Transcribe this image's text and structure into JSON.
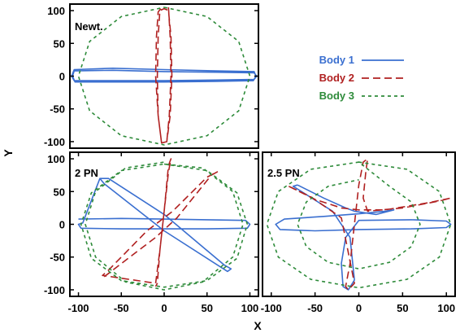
{
  "figure": {
    "xlabel": "X",
    "ylabel": "Y"
  },
  "legend": {
    "items": [
      {
        "label": "Body 1",
        "color": "#3a6fd0",
        "dash": "solid"
      },
      {
        "label": "Body 2",
        "color": "#b02020",
        "dash": "long-dash"
      },
      {
        "label": "Body 3",
        "color": "#2e8b3a",
        "dash": "short-dash"
      }
    ]
  },
  "chart_data": [
    {
      "type": "line",
      "panel_label": "Newt.",
      "xlim": [
        -110,
        110
      ],
      "ylim": [
        -110,
        110
      ],
      "xticks": [],
      "yticks": [
        -100,
        -50,
        0,
        50,
        100
      ],
      "grid": false,
      "series": [
        {
          "name": "Body 1",
          "color": "#3a6fd0",
          "dash": "solid",
          "x": [
            -105,
            -60,
            0,
            60,
            105,
            108,
            105,
            60,
            0,
            -60,
            -105,
            -108,
            -105,
            -60,
            0,
            60,
            105,
            107,
            104,
            60,
            0,
            -60,
            -104,
            -107,
            -105
          ],
          "y": [
            8,
            9,
            7,
            6,
            5,
            0,
            -5,
            -6,
            -7,
            -7,
            -7,
            0,
            10,
            12,
            10,
            8,
            7,
            0,
            -7,
            -8,
            -9,
            -9,
            -9,
            0,
            8
          ]
        },
        {
          "name": "Body 2",
          "color": "#b02020",
          "dash": "long-dash",
          "x": [
            5,
            7,
            8,
            6,
            3,
            -3,
            -7,
            -8,
            -7,
            -5,
            0,
            5,
            8,
            9,
            7,
            3,
            -3,
            -7,
            -10,
            -9,
            -7,
            -4
          ],
          "y": [
            105,
            60,
            0,
            -60,
            -100,
            -102,
            -60,
            0,
            60,
            100,
            103,
            100,
            60,
            0,
            -60,
            -100,
            -102,
            -60,
            0,
            60,
            98,
            103
          ]
        },
        {
          "name": "Body 3",
          "color": "#2e8b3a",
          "dash": "short-dash",
          "x": [
            0,
            50,
            87,
            100,
            87,
            50,
            0,
            -50,
            -87,
            -100,
            -87,
            -50,
            0
          ],
          "y": [
            105,
            91,
            53,
            0,
            -53,
            -91,
            -105,
            -91,
            -53,
            0,
            53,
            91,
            105
          ]
        }
      ]
    },
    {
      "type": "line",
      "panel_label": "2 PN",
      "xlim": [
        -110,
        110
      ],
      "ylim": [
        -110,
        110
      ],
      "xticks": [
        -100,
        -50,
        0,
        50,
        100
      ],
      "yticks": [
        -100,
        -50,
        0,
        50,
        100
      ],
      "grid": false,
      "series": [
        {
          "name": "Body 1",
          "color": "#3a6fd0",
          "dash": "solid",
          "x": [
            -100,
            -50,
            0,
            50,
            95,
            100,
            97,
            50,
            0,
            -50,
            -97,
            -100,
            -95,
            -75,
            -65,
            0,
            70,
            78,
            74,
            0,
            -70,
            -75
          ],
          "y": [
            8,
            9,
            8,
            7,
            6,
            0,
            -6,
            -7,
            -7,
            -7,
            -6,
            0,
            2,
            70,
            70,
            15,
            -62,
            -68,
            -72,
            -10,
            62,
            70
          ]
        },
        {
          "name": "Body 2",
          "color": "#b02020",
          "dash": "long-dash",
          "x": [
            -70,
            -40,
            -10,
            15,
            55,
            62,
            50,
            10,
            -20,
            -65,
            -72,
            -10,
            -5,
            0,
            5,
            8,
            5,
            0,
            -5,
            -8,
            -10
          ],
          "y": [
            -80,
            -50,
            -20,
            10,
            75,
            80,
            72,
            20,
            -10,
            -70,
            -78,
            -90,
            -40,
            20,
            80,
            100,
            90,
            20,
            -40,
            -90,
            -95
          ]
        },
        {
          "name": "Body 3",
          "color": "#2e8b3a",
          "dash": "short-dash",
          "x": [
            0,
            50,
            85,
            97,
            85,
            50,
            0,
            -50,
            -85,
            -97,
            -85,
            -50,
            0,
            45,
            80,
            92,
            80,
            45,
            0,
            -45,
            -80,
            -92,
            -80,
            -45,
            0
          ],
          "y": [
            92,
            82,
            48,
            0,
            -52,
            -86,
            -96,
            -86,
            -52,
            0,
            48,
            82,
            92,
            86,
            50,
            0,
            -50,
            -88,
            -100,
            -88,
            -50,
            0,
            50,
            86,
            95
          ]
        }
      ]
    },
    {
      "type": "line",
      "panel_label": "2.5 PN",
      "xlim": [
        -110,
        110
      ],
      "ylim": [
        -110,
        110
      ],
      "xticks": [
        -100,
        -50,
        0,
        50,
        100
      ],
      "yticks": [],
      "grid": false,
      "series": [
        {
          "name": "Body 1",
          "color": "#3a6fd0",
          "dash": "solid",
          "x": [
            -70,
            -40,
            -15,
            -5,
            20,
            40,
            30,
            0,
            -40,
            -85,
            -95,
            -90,
            -50,
            0,
            60,
            100,
            105,
            100,
            60,
            0,
            -15,
            -20,
            -18,
            -12,
            -5,
            -10,
            -30,
            -75,
            -70
          ],
          "y": [
            60,
            40,
            25,
            20,
            15,
            22,
            20,
            16,
            12,
            8,
            0,
            -8,
            -10,
            -8,
            -7,
            -5,
            0,
            5,
            7,
            6,
            -20,
            -60,
            -95,
            -100,
            -85,
            -20,
            20,
            58,
            60
          ]
        },
        {
          "name": "Body 2",
          "color": "#b02020",
          "dash": "long-dash",
          "x": [
            -80,
            -50,
            -20,
            0,
            30,
            80,
            105,
            90,
            50,
            10,
            5,
            8,
            10,
            5,
            0,
            -5,
            -10,
            -15,
            -12,
            -5,
            -20,
            -55,
            -80
          ],
          "y": [
            58,
            38,
            25,
            22,
            22,
            33,
            40,
            35,
            25,
            20,
            40,
            80,
            100,
            95,
            60,
            0,
            -60,
            -95,
            -100,
            -90,
            10,
            42,
            58
          ]
        },
        {
          "name": "Body 3",
          "color": "#2e8b3a",
          "dash": "short-dash",
          "x": [
            0,
            55,
            92,
            105,
            92,
            55,
            0,
            -55,
            -92,
            -105,
            -92,
            -55,
            0,
            35,
            60,
            70,
            60,
            35,
            0,
            -35,
            -60,
            -70,
            -60,
            -35,
            0
          ],
          "y": [
            95,
            84,
            50,
            0,
            -50,
            -84,
            -97,
            -84,
            -50,
            0,
            50,
            84,
            95,
            58,
            34,
            0,
            -34,
            -58,
            -68,
            -58,
            -34,
            0,
            34,
            58,
            68
          ]
        }
      ]
    }
  ]
}
